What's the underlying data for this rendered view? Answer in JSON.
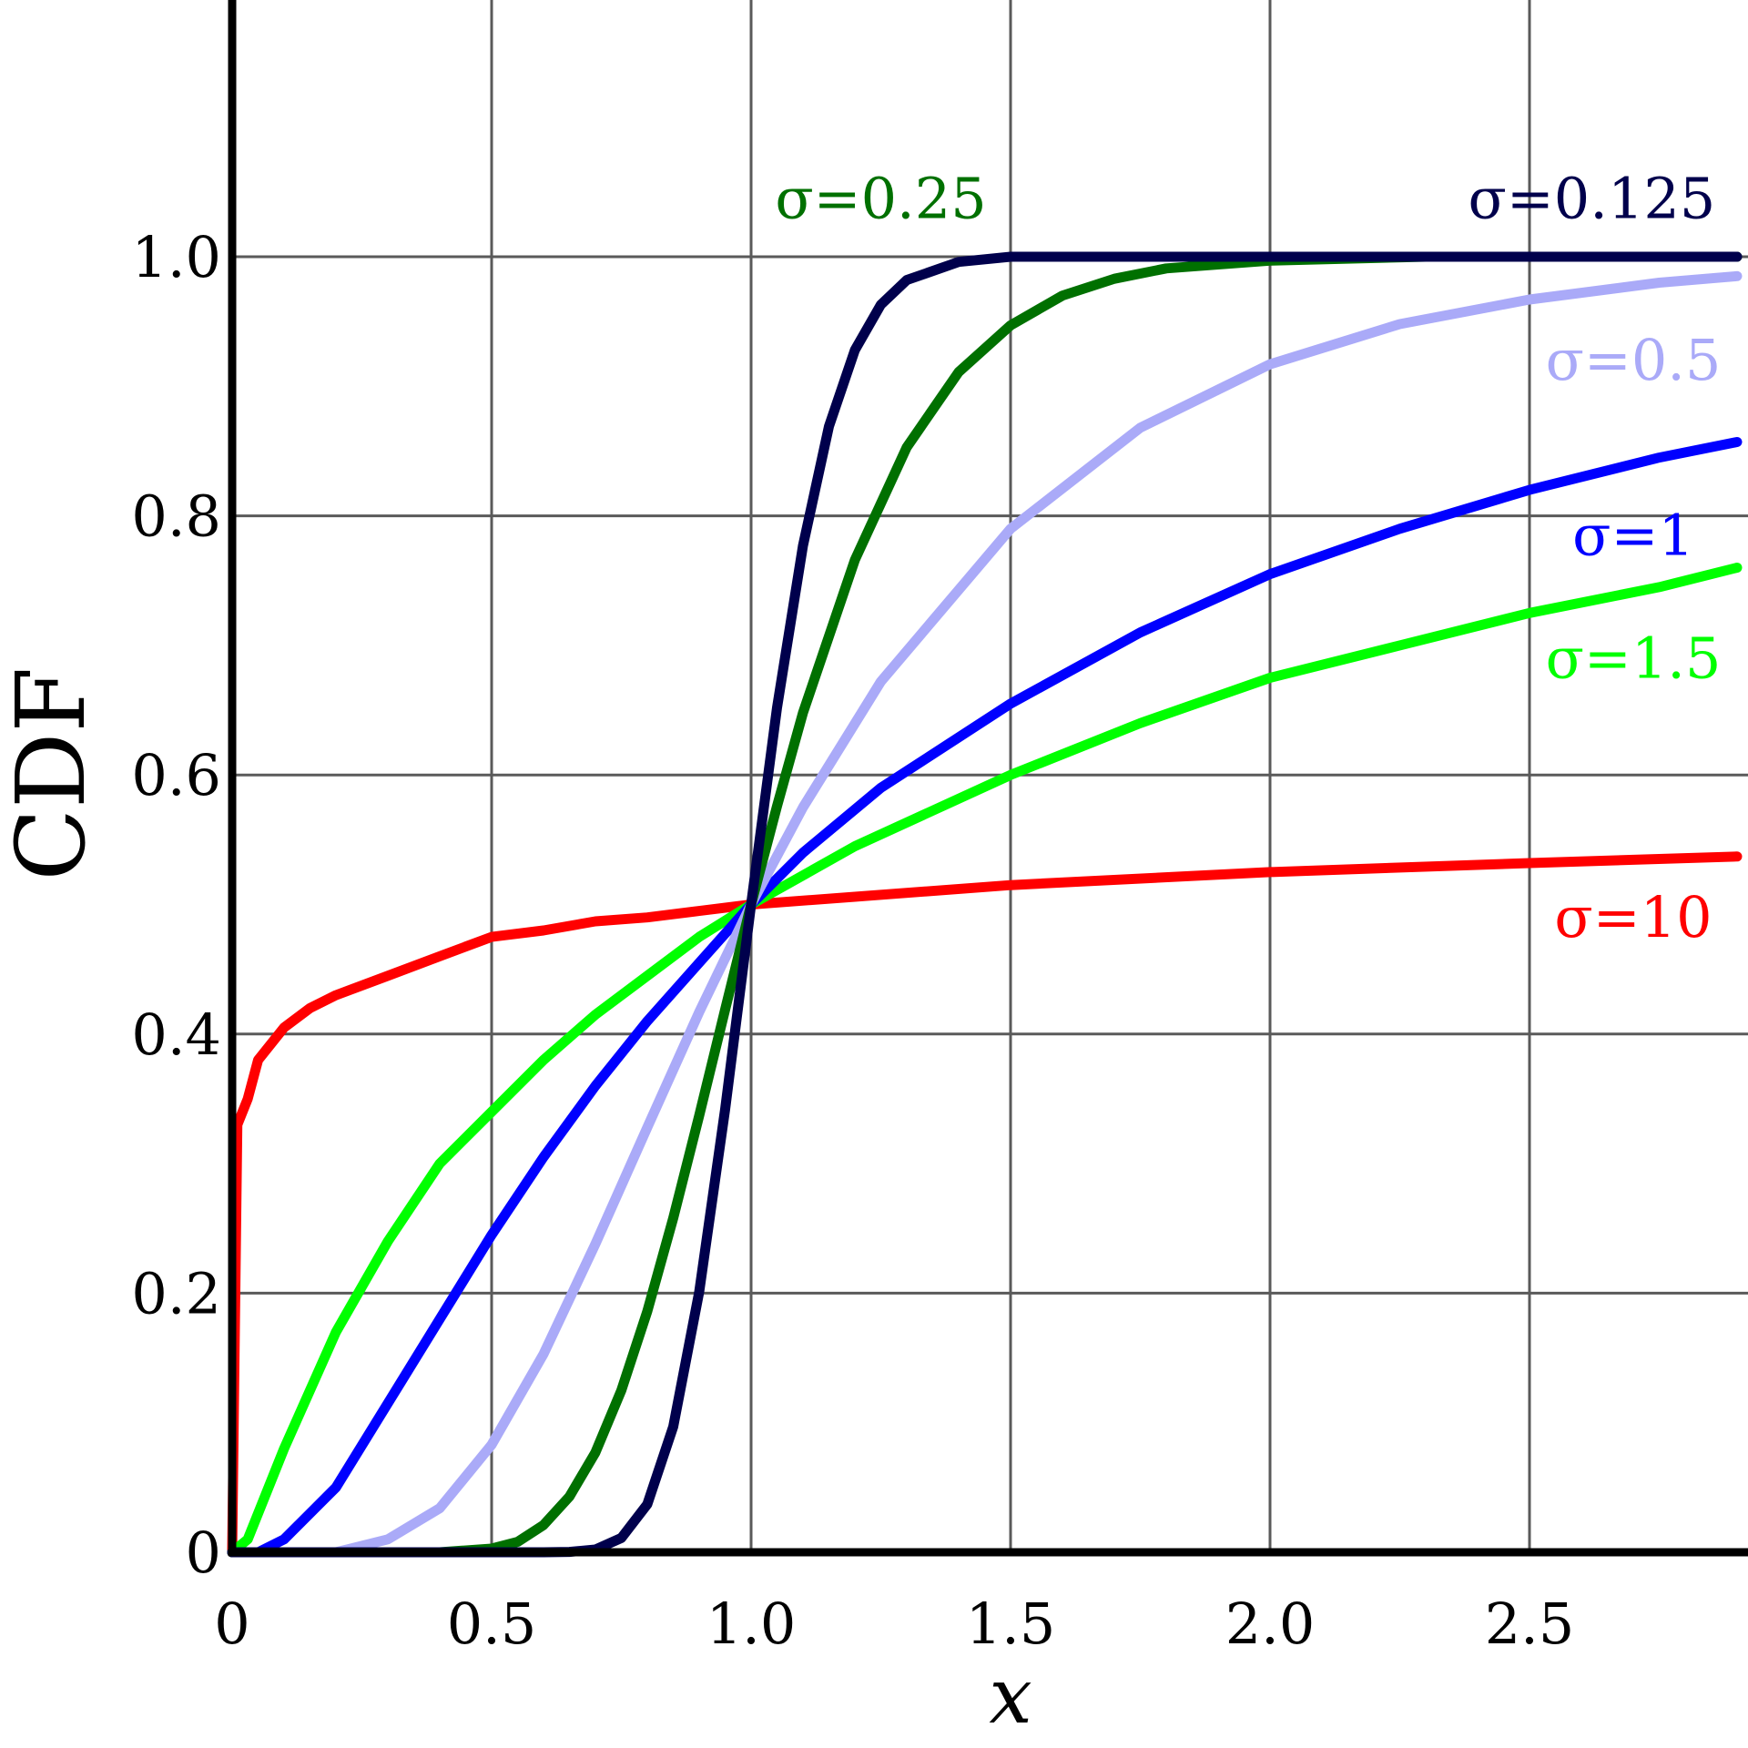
{
  "chart_data": {
    "type": "line",
    "xlabel": "x",
    "ylabel": "CDF",
    "xlim": [
      0,
      2.9
    ],
    "ylim": [
      0,
      1.3
    ],
    "grid": true,
    "x_ticks": [
      {
        "value": 0,
        "label": "0"
      },
      {
        "value": 0.5,
        "label": "0.5"
      },
      {
        "value": 1.0,
        "label": "1.0"
      },
      {
        "value": 1.5,
        "label": "1.5"
      },
      {
        "value": 2.0,
        "label": "2.0"
      },
      {
        "value": 2.5,
        "label": "2.5"
      }
    ],
    "y_ticks": [
      {
        "value": 0,
        "label": "0"
      },
      {
        "value": 0.2,
        "label": "0.2"
      },
      {
        "value": 0.4,
        "label": "0.4"
      },
      {
        "value": 0.6,
        "label": "0.6"
      },
      {
        "value": 0.8,
        "label": "0.8"
      },
      {
        "value": 1.0,
        "label": "1.0"
      }
    ],
    "series": [
      {
        "name": "σ=10",
        "color": "#ff0000",
        "label_pos": [
          2.7,
          0.475
        ],
        "points": [
          [
            0,
            0
          ],
          [
            0.01,
            0.33
          ],
          [
            0.03,
            0.35
          ],
          [
            0.05,
            0.38
          ],
          [
            0.1,
            0.405
          ],
          [
            0.15,
            0.42
          ],
          [
            0.2,
            0.43
          ],
          [
            0.3,
            0.445
          ],
          [
            0.4,
            0.46
          ],
          [
            0.5,
            0.475
          ],
          [
            0.6,
            0.48
          ],
          [
            0.7,
            0.487
          ],
          [
            0.8,
            0.49
          ],
          [
            0.9,
            0.495
          ],
          [
            1.0,
            0.5
          ],
          [
            1.2,
            0.506
          ],
          [
            1.5,
            0.515
          ],
          [
            2.0,
            0.525
          ],
          [
            2.5,
            0.532
          ],
          [
            2.9,
            0.537
          ]
        ]
      },
      {
        "name": "σ=1.5",
        "color": "#00ff00",
        "label_pos": [
          2.7,
          0.675
        ],
        "points": [
          [
            0,
            0
          ],
          [
            0.03,
            0.01
          ],
          [
            0.1,
            0.08
          ],
          [
            0.2,
            0.17
          ],
          [
            0.3,
            0.24
          ],
          [
            0.4,
            0.3
          ],
          [
            0.5,
            0.34
          ],
          [
            0.6,
            0.38
          ],
          [
            0.7,
            0.415
          ],
          [
            0.8,
            0.445
          ],
          [
            0.9,
            0.475
          ],
          [
            1.0,
            0.5
          ],
          [
            1.2,
            0.545
          ],
          [
            1.5,
            0.6
          ],
          [
            1.75,
            0.64
          ],
          [
            2.0,
            0.675
          ],
          [
            2.25,
            0.7
          ],
          [
            2.5,
            0.725
          ],
          [
            2.75,
            0.745
          ],
          [
            2.9,
            0.76
          ]
        ]
      },
      {
        "name": "σ=1",
        "color": "#0000ff",
        "label_pos": [
          2.7,
          0.77
        ],
        "points": [
          [
            0,
            0
          ],
          [
            0.05,
            0
          ],
          [
            0.1,
            0.01
          ],
          [
            0.2,
            0.05
          ],
          [
            0.3,
            0.115
          ],
          [
            0.4,
            0.18
          ],
          [
            0.5,
            0.245
          ],
          [
            0.6,
            0.305
          ],
          [
            0.7,
            0.36
          ],
          [
            0.8,
            0.41
          ],
          [
            0.9,
            0.455
          ],
          [
            1.0,
            0.5
          ],
          [
            1.1,
            0.54
          ],
          [
            1.25,
            0.59
          ],
          [
            1.5,
            0.655
          ],
          [
            1.75,
            0.71
          ],
          [
            2.0,
            0.755
          ],
          [
            2.25,
            0.79
          ],
          [
            2.5,
            0.82
          ],
          [
            2.75,
            0.845
          ],
          [
            2.9,
            0.857
          ]
        ]
      },
      {
        "name": "σ=0.5",
        "color": "#aaaaf8",
        "label_pos": [
          2.7,
          0.905
        ],
        "points": [
          [
            0,
            0
          ],
          [
            0.2,
            0
          ],
          [
            0.3,
            0.01
          ],
          [
            0.4,
            0.034
          ],
          [
            0.5,
            0.083
          ],
          [
            0.6,
            0.153
          ],
          [
            0.7,
            0.238
          ],
          [
            0.8,
            0.328
          ],
          [
            0.9,
            0.417
          ],
          [
            1.0,
            0.5
          ],
          [
            1.1,
            0.575
          ],
          [
            1.25,
            0.672
          ],
          [
            1.5,
            0.79
          ],
          [
            1.75,
            0.868
          ],
          [
            2.0,
            0.917
          ],
          [
            2.25,
            0.948
          ],
          [
            2.5,
            0.967
          ],
          [
            2.75,
            0.98
          ],
          [
            2.9,
            0.985
          ]
        ]
      },
      {
        "name": "σ=0.25",
        "color": "#007000",
        "label_pos": [
          1.25,
          1.03
        ],
        "points": [
          [
            0,
            0
          ],
          [
            0.4,
            0
          ],
          [
            0.5,
            0.0028
          ],
          [
            0.55,
            0.008
          ],
          [
            0.6,
            0.021
          ],
          [
            0.65,
            0.043
          ],
          [
            0.7,
            0.077
          ],
          [
            0.75,
            0.125
          ],
          [
            0.8,
            0.186
          ],
          [
            0.85,
            0.258
          ],
          [
            0.9,
            0.337
          ],
          [
            0.95,
            0.419
          ],
          [
            1.0,
            0.5
          ],
          [
            1.05,
            0.576
          ],
          [
            1.1,
            0.648
          ],
          [
            1.2,
            0.766
          ],
          [
            1.3,
            0.853
          ],
          [
            1.4,
            0.911
          ],
          [
            1.5,
            0.947
          ],
          [
            1.6,
            0.97
          ],
          [
            1.7,
            0.983
          ],
          [
            1.8,
            0.991
          ],
          [
            2.0,
            0.997
          ],
          [
            2.3,
            1.0
          ],
          [
            2.9,
            1.0
          ]
        ]
      },
      {
        "name": "σ=0.125",
        "color": "#00004c",
        "label_pos": [
          2.62,
          1.03
        ],
        "points": [
          [
            0,
            0
          ],
          [
            0.6,
            0
          ],
          [
            0.65,
            0.0003
          ],
          [
            0.7,
            0.0021
          ],
          [
            0.75,
            0.011
          ],
          [
            0.8,
            0.037
          ],
          [
            0.85,
            0.097
          ],
          [
            0.9,
            0.201
          ],
          [
            0.95,
            0.342
          ],
          [
            1.0,
            0.5
          ],
          [
            1.05,
            0.652
          ],
          [
            1.1,
            0.777
          ],
          [
            1.15,
            0.869
          ],
          [
            1.2,
            0.928
          ],
          [
            1.25,
            0.963
          ],
          [
            1.3,
            0.982
          ],
          [
            1.4,
            0.996
          ],
          [
            1.5,
            1.0
          ],
          [
            2.9,
            1.0
          ]
        ]
      }
    ]
  }
}
